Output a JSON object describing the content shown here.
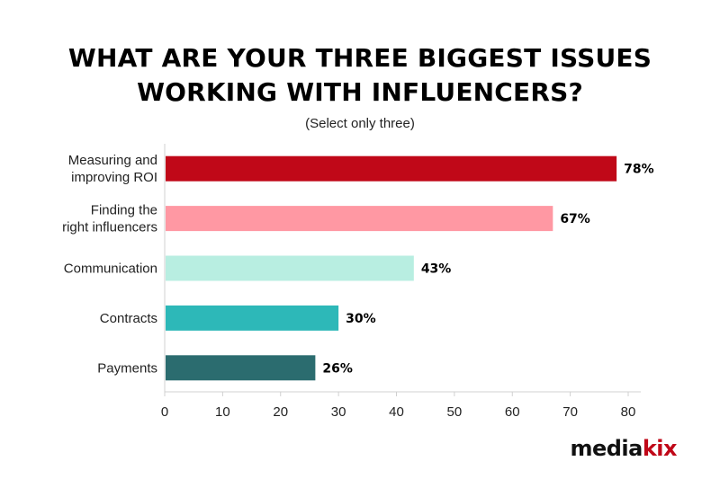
{
  "header": {
    "title_line1": "WHAT ARE YOUR THREE BIGGEST ISSUES",
    "title_line2": "WORKING WITH INFLUENCERS?",
    "subtitle": "(Select only three)"
  },
  "logo": {
    "part1": "media",
    "part2": "kix",
    "colors": {
      "part1": "#111111",
      "part2": "#c00818"
    }
  },
  "chart_data": {
    "type": "bar",
    "orientation": "horizontal",
    "title": "WHAT ARE YOUR THREE BIGGEST ISSUES WORKING WITH INFLUENCERS?",
    "subtitle": "(Select only three)",
    "categories": [
      [
        "Measuring and",
        "improving ROI"
      ],
      [
        "Finding the",
        "right influencers"
      ],
      [
        "Communication"
      ],
      [
        "Contracts"
      ],
      [
        "Payments"
      ]
    ],
    "values": [
      78,
      67,
      43,
      30,
      26
    ],
    "value_labels": [
      "78%",
      "67%",
      "43%",
      "30%",
      "26%"
    ],
    "colors": [
      "#c00818",
      "#ff98a3",
      "#b8eee1",
      "#2db8b8",
      "#2b6c6f"
    ],
    "xlim": [
      0,
      80
    ],
    "xticks": [
      0,
      10,
      20,
      30,
      40,
      50,
      60,
      70,
      80
    ],
    "grid": false,
    "legend": "none",
    "xlabel": "",
    "ylabel": ""
  }
}
